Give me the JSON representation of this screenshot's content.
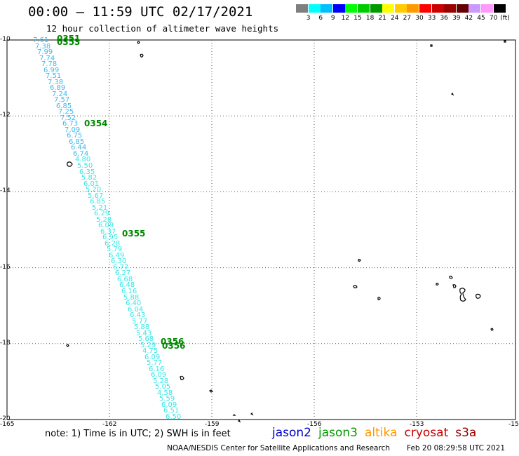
{
  "header": {
    "title": "00:00 – 11:59 UTC 02/17/2021",
    "subtitle": "12 hour collection of altimeter wave heights"
  },
  "colorbar": {
    "colors": [
      "#7f7f7f",
      "#00ffff",
      "#00bfff",
      "#0000ff",
      "#00ff00",
      "#00cc00",
      "#009900",
      "#ffff00",
      "#ffcc00",
      "#ff9900",
      "#ff0000",
      "#cc0000",
      "#990000",
      "#660000",
      "#cc99ff",
      "#ff99ff",
      "#000000"
    ],
    "labels": [
      "3",
      "6",
      "9",
      "12",
      "15",
      "18",
      "21",
      "24",
      "27",
      "30",
      "33",
      "36",
      "39",
      "42",
      "45",
      "70"
    ],
    "unit": "(ft)"
  },
  "map": {
    "lon_range": [
      -165,
      -150
    ],
    "lat_range": [
      -20,
      -10
    ],
    "lat_labels": [
      "-10",
      "-12",
      "-14",
      "-16",
      "-18",
      "-20"
    ],
    "lon_labels": [
      "-165",
      "-162",
      "-159",
      "-156",
      "-153",
      "-15"
    ],
    "track_color_dark": "#3fb9ef",
    "track_color_light": "#36e6e6",
    "time_color": "#008800",
    "track_values": [
      "7.61",
      "7.38",
      "7.99",
      "7.74",
      "7.78",
      "6.99",
      "7.51",
      "7.38",
      "6.89",
      "7.24",
      "7.57",
      "6.85",
      "7.25",
      "7.52",
      "6.73",
      "7.09",
      "6.75",
      "6.85",
      "6.44",
      "6.74",
      "4.80",
      "5.50",
      "6.35",
      "5.82",
      "6.01",
      "5.20",
      "5.67",
      "6.85",
      "5.21",
      "6.29",
      "5.28",
      "6.09",
      "6.37",
      "6.95",
      "6.28",
      "5.79",
      "6.49",
      "6.30",
      "6.77",
      "6.27",
      "6.68",
      "6.48",
      "6.16",
      "5.88",
      "6.40",
      "6.04",
      "6.43",
      "5.77",
      "5.88",
      "5.43",
      "5.68",
      "5.29",
      "4.75",
      "6.09",
      "5.77",
      "6.16",
      "6.09",
      "5.28",
      "5.05",
      "4.58",
      "5.59",
      "6.09",
      "6.51",
      "6.50"
    ],
    "time_tags": [
      "0351",
      "0353",
      "0354",
      "0355",
      "0356"
    ],
    "time_tags_shadow": [
      "0353",
      "0354",
      "0355",
      "0356"
    ]
  },
  "footer": {
    "note": "note:  1) Time is in UTC;  2) SWH is in feet",
    "legend": [
      {
        "name": "jason2",
        "color": "#0000cc"
      },
      {
        "name": "jason3",
        "color": "#009900"
      },
      {
        "name": "altika",
        "color": "#ff9900"
      },
      {
        "name": "cryosat",
        "color": "#cc0000"
      },
      {
        "name": "s3a",
        "color": "#990000"
      }
    ],
    "credit": "NOAA/NESDIS Center for Satellite Applications and Research",
    "timestamp": "Feb 20 08:29:58 UTC 2021"
  }
}
